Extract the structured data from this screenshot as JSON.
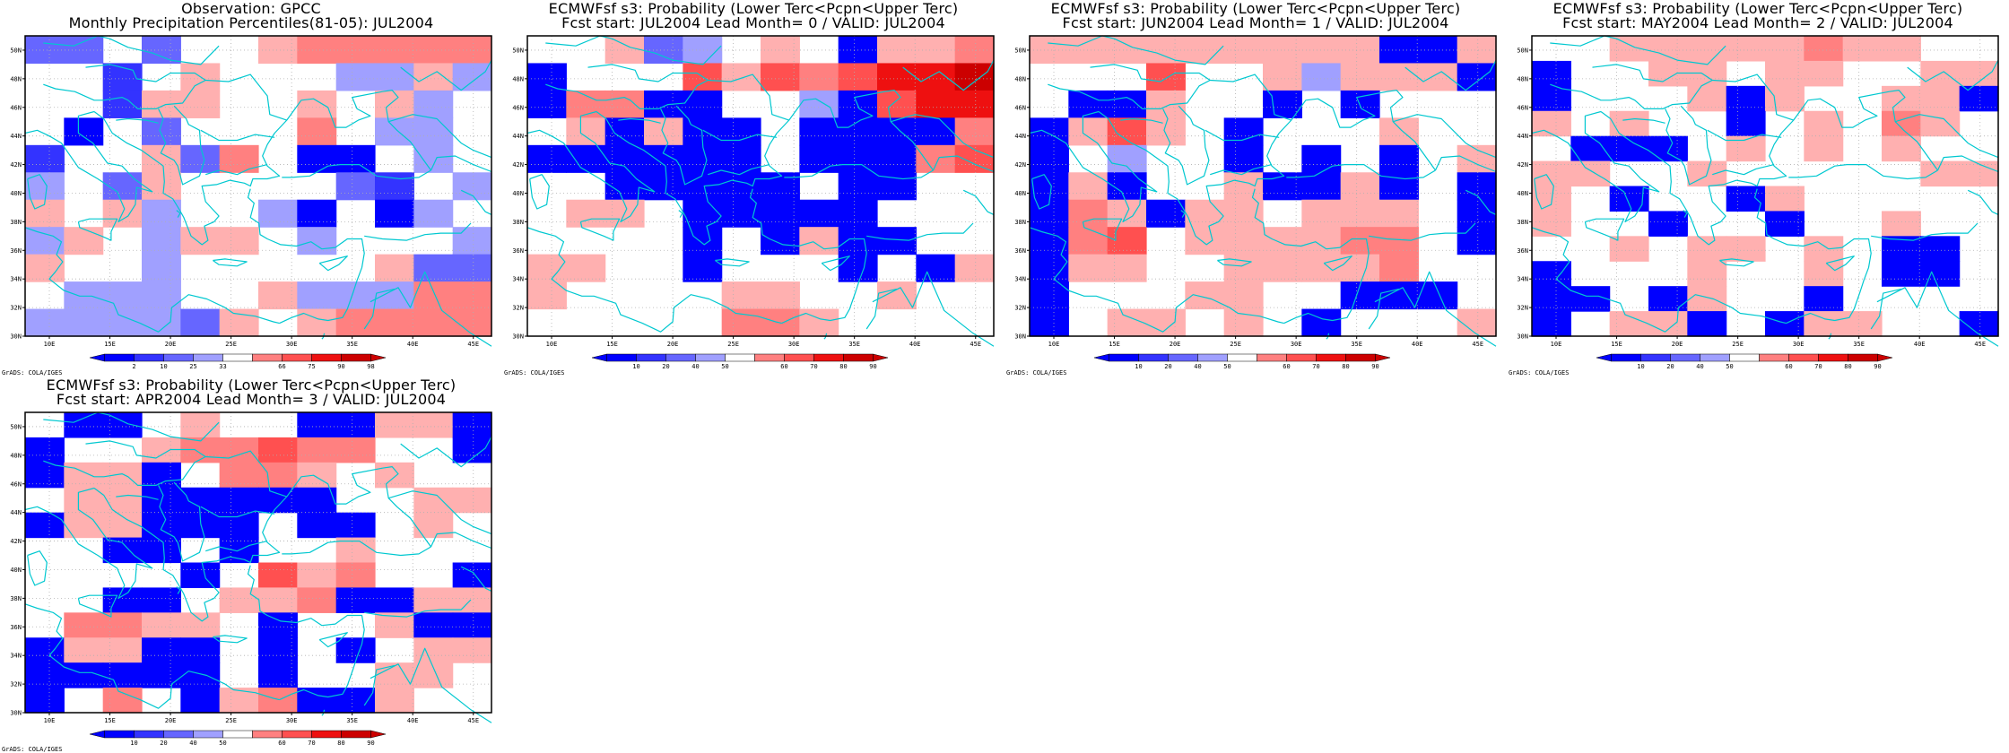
{
  "colors": {
    "scale_blue": [
      "#0000ff",
      "#3333ff",
      "#6666ff",
      "#a0a0ff"
    ],
    "scale_red": [
      "#ffb0b0",
      "#ff8080",
      "#ff5050",
      "#ee1010",
      "#cc0000"
    ],
    "coast": "#00c8d0",
    "grid": "#b0b0b0"
  },
  "map": {
    "lat_ticks": [
      "30N",
      "32N",
      "34N",
      "36N",
      "38N",
      "40N",
      "42N",
      "44N",
      "46N",
      "48N",
      "50N"
    ],
    "lon_ticks": [
      "10E",
      "15E",
      "20E",
      "25E",
      "30E",
      "35E",
      "40E",
      "45E"
    ]
  },
  "credit": "GrADS: COLA/IGES",
  "panels": [
    {
      "title1": "Observation: GPCC",
      "title2": "Monthly Precipitation Percentiles(81-05): JUL2004",
      "colorbar_labels": [
        "2",
        "10",
        "25",
        "33",
        "66",
        "75",
        "90",
        "98"
      ],
      "grid": [
        "CC.C..EFFFFF",
        "..B.E...DDED",
        "..BEE..E.ED.",
        ".A.C...F.DD.",
        "B..ECF.AA.D.",
        "D.CE....CB.D",
        "E.ED..DA.AD.",
        "DE.DEE.D...D",
        "E..D.....ECC",
        ".DDD..EDDDFF",
        "DDDDCE.EFFFF"
      ]
    },
    {
      "title1": "ECMWFsf s3: Probability (Lower Terc<Pcpn<Upper Terc)",
      "title2": "Fcst start: JUL2004  Lead Month= 0 / VALID: JUL2004",
      "colorbar_labels": [
        "10",
        "20",
        "40",
        "50",
        "60",
        "70",
        "80",
        "90"
      ],
      "grid": [
        "..ECD.E.AEEF",
        "A...GEGFGHHI",
        "AFFAA..DAGHH",
        ".EAEAA.AAAAF",
        "AAAAAA.AAAFG",
        "..AAAAA.AA..",
        ".EE.AAAAA...",
        "....A.AEAA..",
        "EE..A...A.AE",
        "E....EE..E..",
        ".....FFE....."
      ]
    },
    {
      "title1": "ECMWFsf s3: Probability (Lower Terc<Pcpn<Upper Terc)",
      "title2": "Fcst start: JUN2004  Lead Month= 1 / VALID: JUL2004",
      "colorbar_labels": [
        "10",
        "20",
        "40",
        "50",
        "60",
        "70",
        "80",
        "90"
      ],
      "grid": [
        "EEEEEEEEEAAE",
        "...G..EDEEEA",
        ".AAE..A.A...",
        "AEGE.A...E..",
        "A.D..A.A.A.E",
        "AEA..EAAEA.A",
        "AFEAEE.EEE.A",
        "AFG.EEEEFF.A",
        "AEE..EEEEF..",
        "A...EE..AAA.",
        "A.EE.E.A...E"
      ]
    },
    {
      "title1": "ECMWFsf s3: Probability (Lower Terc<Pcpn<Upper Terc)",
      "title2": "Fcst start: MAY2004  Lead Month= 2 / VALID: JUL2004",
      "colorbar_labels": [
        "10",
        "20",
        "40",
        "50",
        "60",
        "70",
        "80",
        "90"
      ],
      "grid": [
        "..EEEEEFEE..",
        "A..EE.EE..EE",
        "A...EAE..EEA",
        "E.E..A.E.FE.",
        ".AAA.E.E.E..",
        "EE..E.....EE",
        "E.A..AE.....",
        "E..A..A..E..",
        "..E.EE.E.AA.",
        "A...E..E.AA.",
        "AA.AE..A....",
        "A.EEA.AEE..A"
      ]
    },
    {
      "title1": "ECMWFsf s3: Probability (Lower Terc<Pcpn<Upper Terc)",
      "title2": "Fcst start: APR2004  Lead Month= 3 / VALID: JUL2004",
      "colorbar_labels": [
        "10",
        "20",
        "40",
        "50",
        "60",
        "70",
        "80",
        "90"
      ],
      "grid": [
        ".AA.E..AAEEA",
        "A..EFFGFF..A",
        "AEEA.FFE.E..",
        ".EEAAAAA..EE",
        "AEEAAA.AA.E.",
        "..AA.A..E...",
        "....A.GEF..A",
        "..AA.EEFAAEE",
        ".FFEE.A..EAA",
        "AEEAA.A.A.EE",
        "AAAAA.A..EE.",
        "A.F.AEFAAE.."
      ]
    }
  ]
}
